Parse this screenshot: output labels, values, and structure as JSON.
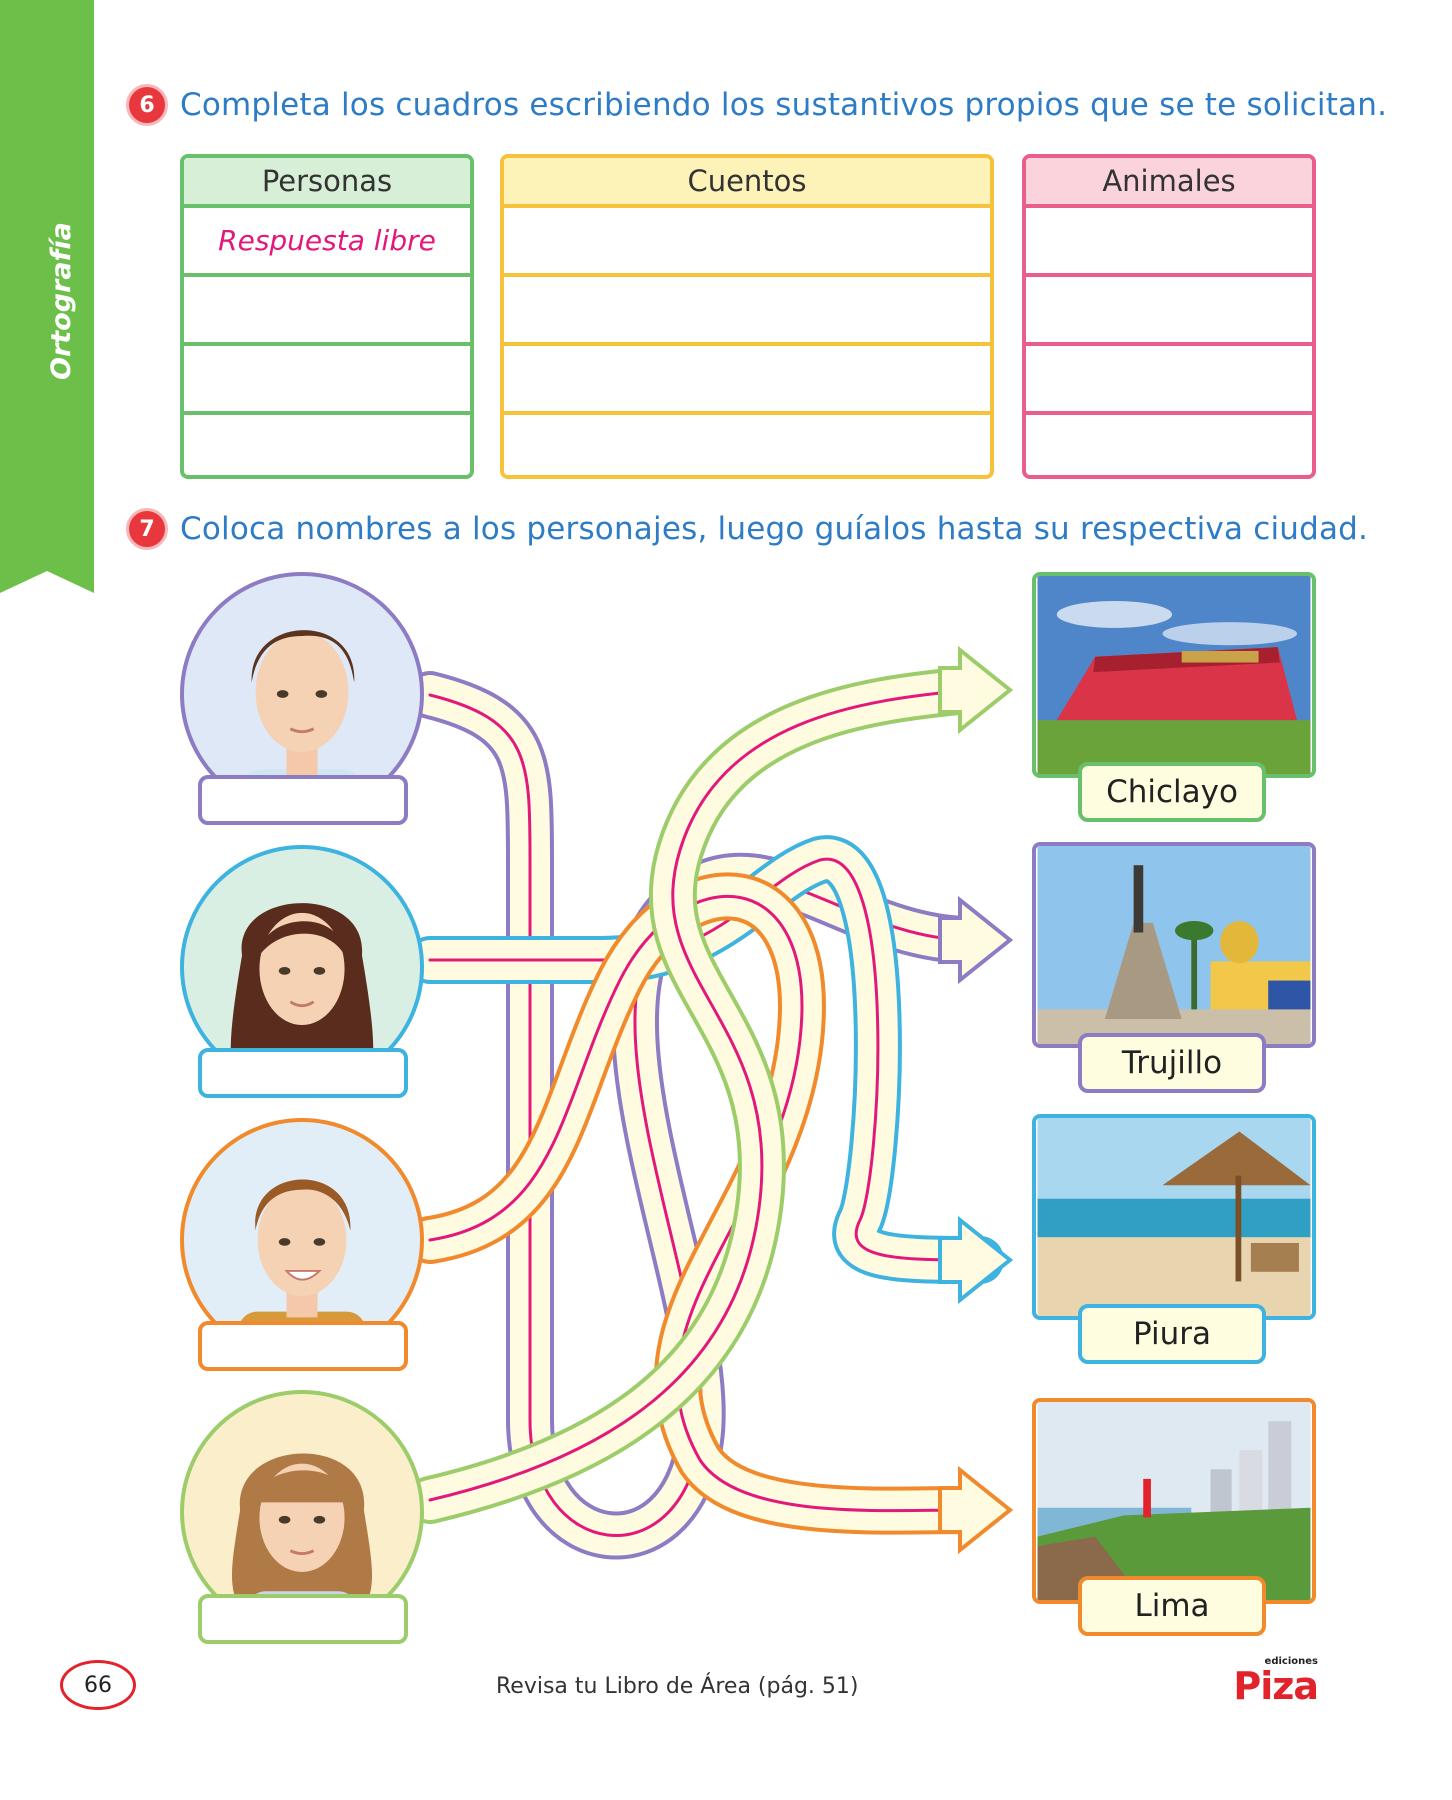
{
  "side_tab": {
    "label": "Ortografía",
    "color": "#6cc04a"
  },
  "exercise6": {
    "number": "6",
    "instruction": "Completa los cuadros escribiendo los sustantivos propios que se te solicitan.",
    "tables": [
      {
        "header": "Personas",
        "rows": [
          "Respuesta libre",
          "",
          "",
          ""
        ],
        "color": "#69c06a"
      },
      {
        "header": "Cuentos",
        "rows": [
          "",
          "",
          "",
          ""
        ],
        "color": "#f6c23b"
      },
      {
        "header": "Animales",
        "rows": [
          "",
          "",
          "",
          ""
        ],
        "color": "#e95e8a"
      }
    ]
  },
  "exercise7": {
    "number": "7",
    "instruction": "Coloca nombres a los personajes, luego guíalos hasta su respectiva ciudad.",
    "characters": [
      {
        "name": "",
        "color": "#8d7cc4"
      },
      {
        "name": "",
        "color": "#3fb3e0"
      },
      {
        "name": "",
        "color": "#f08a2c"
      },
      {
        "name": "",
        "color": "#9ccd6a"
      }
    ],
    "cities": [
      {
        "label": "Chiclayo",
        "color": "#69c06a"
      },
      {
        "label": "Trujillo",
        "color": "#8d7cc4"
      },
      {
        "label": "Piura",
        "color": "#3fb3e0"
      },
      {
        "label": "Lima",
        "color": "#f08a2c"
      }
    ]
  },
  "footer": {
    "page_number": "66",
    "note": "Revisa tu Libro de Área (pág. 51)",
    "logo_small": "ediciones",
    "logo_big": "Piza"
  }
}
